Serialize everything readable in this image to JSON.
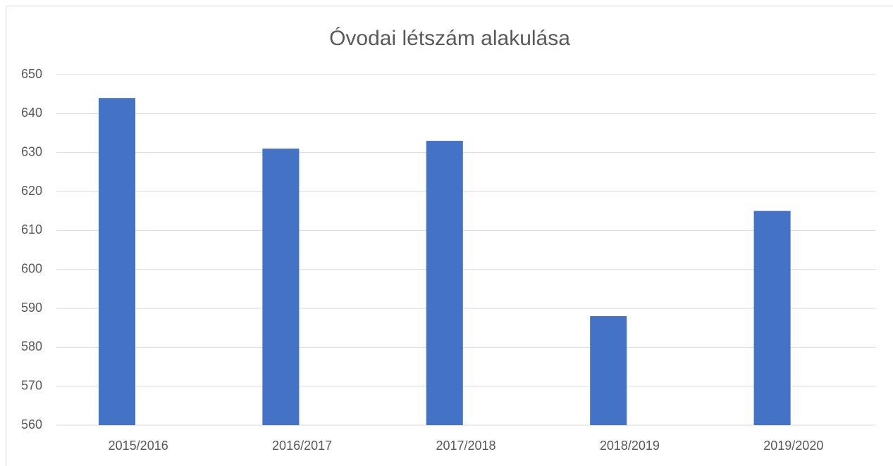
{
  "chart_data": {
    "type": "bar",
    "title": "Óvodai létszám alakulása",
    "categories": [
      "2015/2016",
      "2016/2017",
      "2017/2018",
      "2018/2019",
      "2019/2020"
    ],
    "values": [
      644,
      631,
      633,
      588,
      615
    ],
    "color": "#4472c4",
    "ylim": [
      560,
      650
    ],
    "yticks": [
      560,
      570,
      580,
      590,
      600,
      610,
      620,
      630,
      640,
      650
    ],
    "grid": true
  }
}
